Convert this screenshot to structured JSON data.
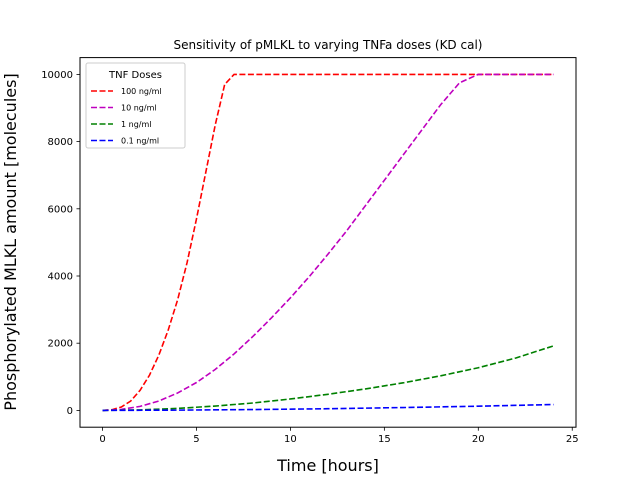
{
  "chart_data": {
    "type": "line",
    "title": "Sensitivity of pMLKL to varying TNFa doses (KD cal)",
    "xlabel": "Time [hours]",
    "ylabel": "Phosphorylated MLKL amount [molecules]",
    "xlim": [
      -1.2,
      25.2
    ],
    "ylim": [
      -500,
      10500
    ],
    "xticks": [
      0,
      5,
      10,
      15,
      20,
      25
    ],
    "yticks": [
      0,
      2000,
      4000,
      6000,
      8000,
      10000
    ],
    "grid": false,
    "legend": {
      "title": "TNF Doses",
      "placement": "top-left"
    },
    "series": [
      {
        "name": "100 ng/ml",
        "color": "#ff0000",
        "x": [
          0,
          0.5,
          1,
          1.5,
          2,
          2.5,
          3,
          3.5,
          4,
          4.5,
          5,
          5.5,
          6,
          6.5,
          7,
          8,
          10,
          12,
          14,
          16,
          18,
          20,
          22,
          24
        ],
        "y": [
          0,
          20,
          100,
          280,
          600,
          1050,
          1650,
          2400,
          3300,
          4400,
          5700,
          7100,
          8500,
          9700,
          10000,
          10000,
          10000,
          10000,
          10000,
          10000,
          10000,
          10000,
          10000,
          10000
        ]
      },
      {
        "name": "10 ng/ml",
        "color": "#bf00bf",
        "x": [
          0,
          1,
          2,
          3,
          4,
          5,
          6,
          7,
          8,
          9,
          10,
          11,
          12,
          13,
          14,
          15,
          16,
          17,
          18,
          19,
          20,
          21,
          22,
          23,
          24
        ],
        "y": [
          0,
          30,
          120,
          280,
          520,
          830,
          1220,
          1680,
          2200,
          2760,
          3350,
          3980,
          4650,
          5350,
          6100,
          6850,
          7600,
          8350,
          9100,
          9750,
          10000,
          10000,
          10000,
          10000,
          10000
        ]
      },
      {
        "name": "1 ng/ml",
        "color": "#008000",
        "x": [
          0,
          2,
          4,
          6,
          8,
          10,
          12,
          14,
          16,
          18,
          20,
          22,
          24
        ],
        "y": [
          0,
          15,
          60,
          130,
          220,
          340,
          480,
          640,
          820,
          1030,
          1270,
          1560,
          1920
        ]
      },
      {
        "name": "0.1 ng/ml",
        "color": "#0000ff",
        "x": [
          0,
          4,
          8,
          12,
          16,
          20,
          24
        ],
        "y": [
          0,
          8,
          25,
          50,
          85,
          125,
          175
        ]
      }
    ]
  }
}
